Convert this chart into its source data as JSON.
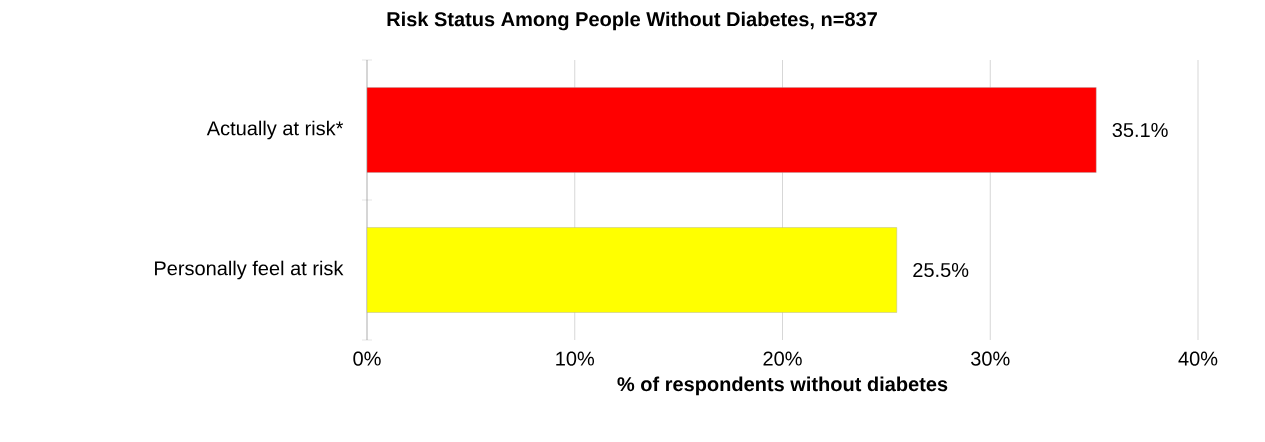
{
  "chart_data": {
    "type": "bar",
    "orientation": "horizontal",
    "title": "Risk Status Among People Without Diabetes, n=837",
    "xlabel": "% of respondents without diabetes",
    "categories": [
      "Actually at risk*",
      "Personally feel at risk"
    ],
    "values": [
      35.1,
      25.5
    ],
    "colors": [
      "#ff0000",
      "#ffff00"
    ],
    "value_labels": [
      "35.1%",
      "25.5%"
    ],
    "xlim": [
      0,
      40
    ],
    "xticks": [
      {
        "value": 0,
        "label": "0%"
      },
      {
        "value": 10,
        "label": "10%"
      },
      {
        "value": 20,
        "label": "20%"
      },
      {
        "value": 30,
        "label": "30%"
      },
      {
        "value": 40,
        "label": "40%"
      }
    ],
    "grid": "x"
  }
}
